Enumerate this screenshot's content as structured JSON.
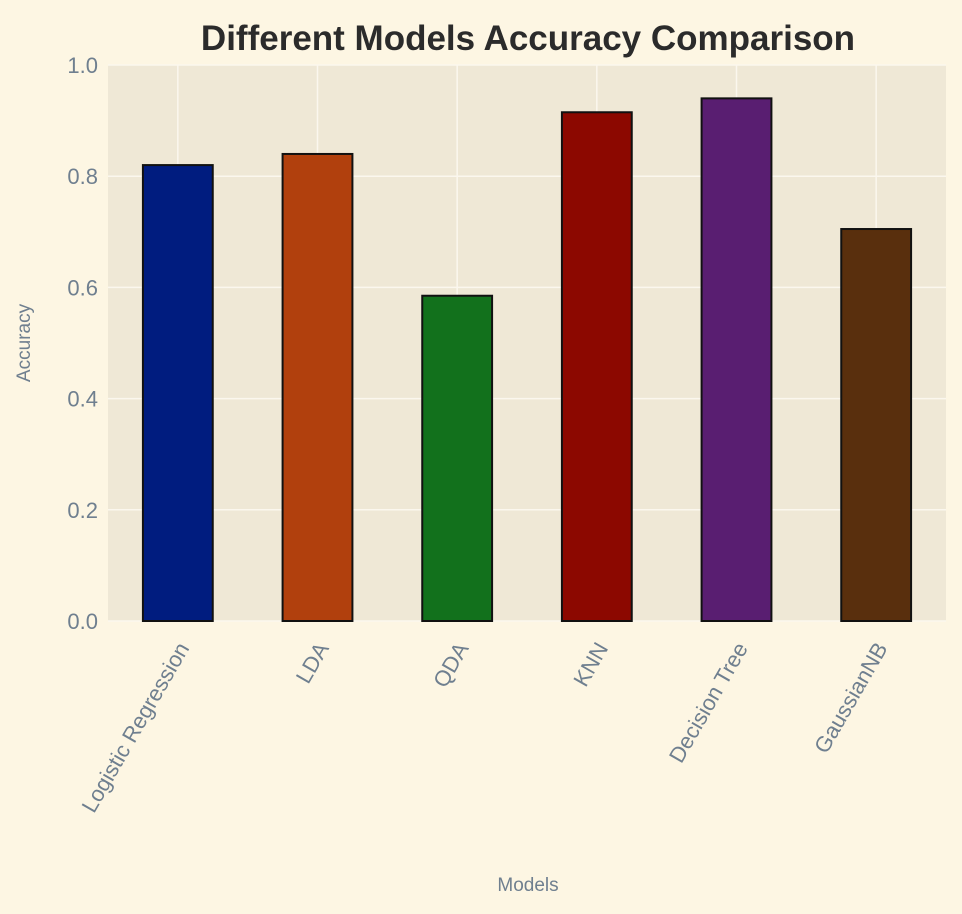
{
  "chart_data": {
    "type": "bar",
    "title": "Different Models Accuracy Comparison",
    "xlabel": "Models",
    "ylabel": "Accuracy",
    "categories": [
      "Logistic Regression",
      "LDA",
      "QDA",
      "KNN",
      "Decision Tree",
      "GaussianNB"
    ],
    "values": [
      0.82,
      0.84,
      0.585,
      0.915,
      0.94,
      0.705
    ],
    "colors": [
      "#001c7f",
      "#b1400d",
      "#12711c",
      "#8c0800",
      "#591e71",
      "#592f0d"
    ],
    "ylim": [
      0,
      1.0
    ],
    "yticks": [
      "0.0",
      "0.2",
      "0.4",
      "0.6",
      "0.8",
      "1.0"
    ],
    "grid": true,
    "legend": "none",
    "background": "#fdf6e3",
    "plot_background": "#efe8d6"
  }
}
